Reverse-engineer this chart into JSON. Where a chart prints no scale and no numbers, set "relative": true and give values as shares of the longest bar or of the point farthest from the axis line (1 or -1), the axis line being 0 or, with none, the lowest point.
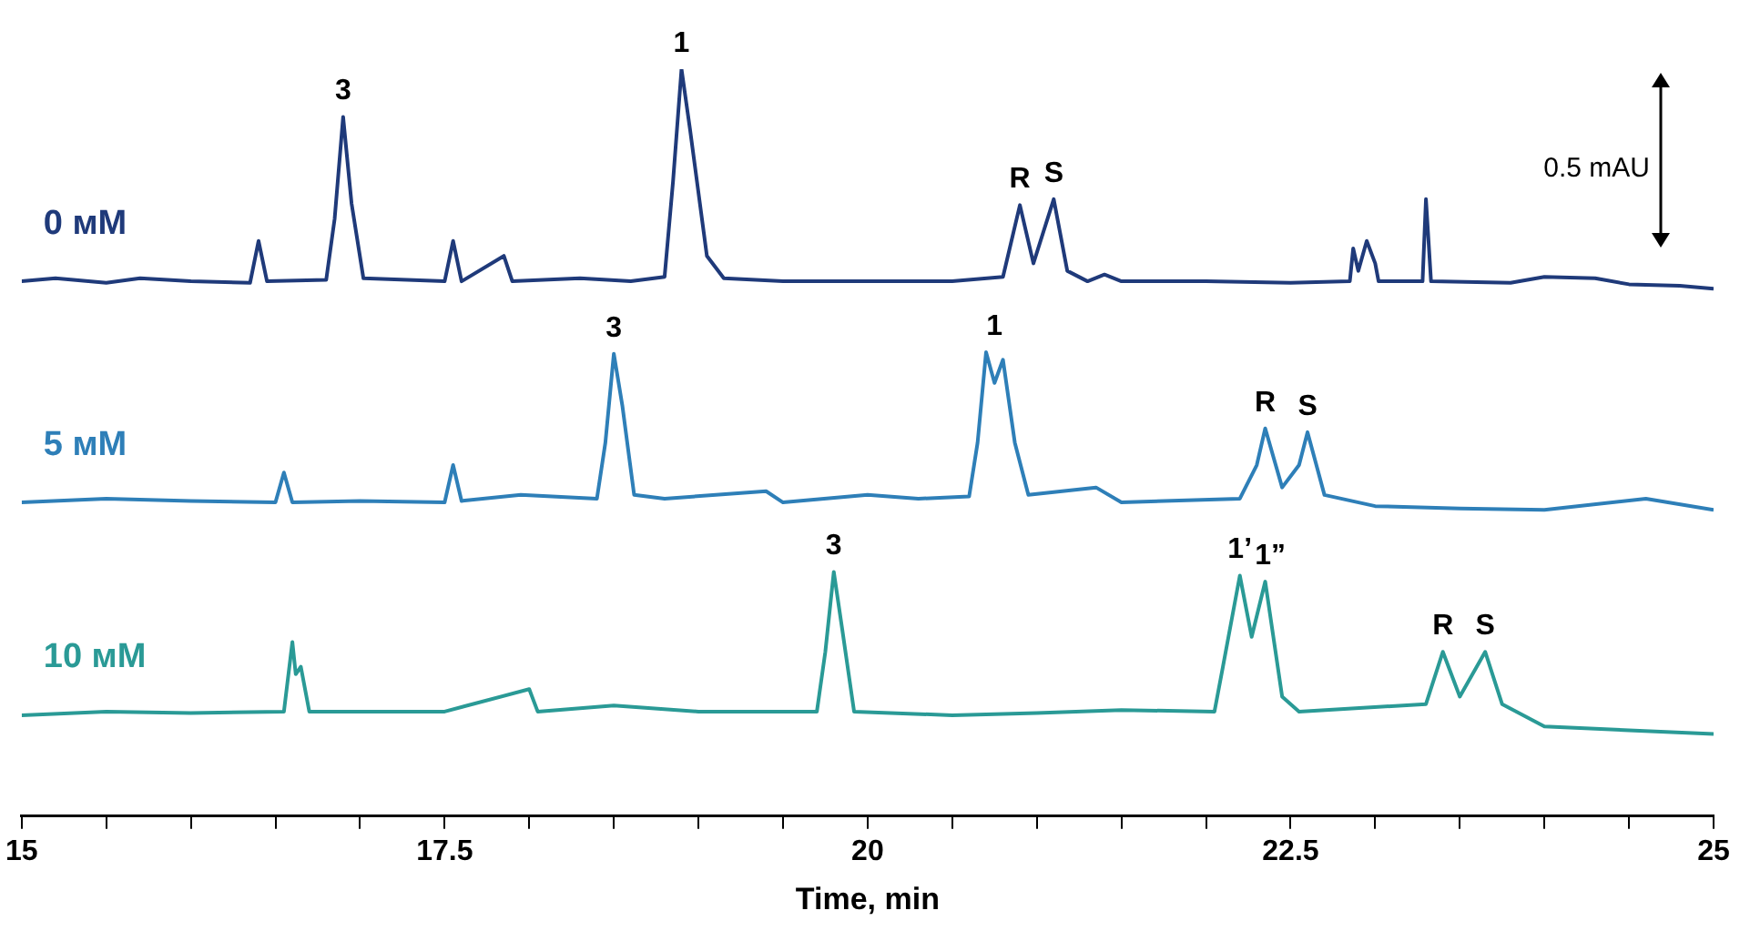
{
  "chart_data": {
    "type": "line",
    "relative": true,
    "xlabel": "Time, min",
    "xlim": [
      15,
      25
    ],
    "xticks": [
      15,
      {
        "value": 15.5,
        "label": null
      },
      {
        "value": 16,
        "label": null
      },
      {
        "value": 16.5,
        "label": null
      },
      {
        "value": 17,
        "label": null
      },
      17.5,
      {
        "value": 18,
        "label": null
      },
      {
        "value": 18.5,
        "label": null
      },
      {
        "value": 19,
        "label": null
      },
      {
        "value": 19.5,
        "label": null
      },
      20,
      {
        "value": 20.5,
        "label": null
      },
      {
        "value": 21,
        "label": null
      },
      {
        "value": 21.5,
        "label": null
      },
      {
        "value": 22,
        "label": null
      },
      22.5,
      {
        "value": 23,
        "label": null
      },
      {
        "value": 23.5,
        "label": null
      },
      {
        "value": 24,
        "label": null
      },
      {
        "value": 24.5,
        "label": null
      },
      25
    ],
    "grid": false,
    "legend": false,
    "marker": "none",
    "line_style": "solid",
    "tick_labels": "x",
    "series": [
      {
        "name": "0 мМ",
        "color": "#1f3a7a",
        "x": [
          15,
          15.2,
          15.5,
          15.7,
          16,
          16.35,
          16.4,
          16.45,
          16.8,
          16.85,
          16.9,
          16.95,
          17.02,
          17.5,
          17.55,
          17.6,
          17.85,
          17.9,
          18.3,
          18.6,
          18.8,
          18.85,
          18.9,
          18.95,
          19.05,
          19.15,
          19.5,
          20,
          20.5,
          20.8,
          20.9,
          20.98,
          21.1,
          21.18,
          21.3,
          21.4,
          21.5,
          22,
          22.5,
          22.85,
          22.87,
          22.9,
          22.95,
          23,
          23.02,
          23.28,
          23.3,
          23.33,
          23.8,
          24,
          24.3,
          24.5,
          24.8,
          25
        ],
        "values": [
          0.716,
          0.72,
          0.714,
          0.72,
          0.716,
          0.714,
          0.77,
          0.716,
          0.718,
          0.8,
          0.936,
          0.82,
          0.72,
          0.716,
          0.77,
          0.716,
          0.75,
          0.716,
          0.72,
          0.716,
          0.722,
          0.85,
          1,
          0.92,
          0.75,
          0.72,
          0.716,
          0.716,
          0.716,
          0.722,
          0.818,
          0.74,
          0.826,
          0.73,
          0.716,
          0.725,
          0.716,
          0.716,
          0.714,
          0.716,
          0.76,
          0.73,
          0.77,
          0.74,
          0.716,
          0.716,
          0.826,
          0.716,
          0.714,
          0.722,
          0.72,
          0.712,
          0.71,
          0.706
        ]
      },
      {
        "name": "5 мМ",
        "color": "#2e7fb8",
        "x": [
          15,
          15.5,
          16,
          16.5,
          16.55,
          16.6,
          17,
          17.5,
          17.55,
          17.6,
          17.95,
          18.4,
          18.45,
          18.5,
          18.55,
          18.62,
          18.8,
          19.4,
          19.5,
          20,
          20.3,
          20.6,
          20.65,
          20.7,
          20.75,
          20.8,
          20.87,
          20.95,
          21.35,
          21.5,
          22.2,
          22.3,
          22.35,
          22.45,
          22.55,
          22.6,
          22.7,
          23,
          23.5,
          24,
          24.6,
          25
        ],
        "values": [
          0.42,
          0.425,
          0.422,
          0.42,
          0.46,
          0.42,
          0.422,
          0.42,
          0.47,
          0.422,
          0.43,
          0.425,
          0.5,
          0.619,
          0.55,
          0.43,
          0.425,
          0.435,
          0.42,
          0.43,
          0.425,
          0.428,
          0.5,
          0.621,
          0.58,
          0.611,
          0.5,
          0.43,
          0.44,
          0.42,
          0.425,
          0.47,
          0.519,
          0.44,
          0.47,
          0.514,
          0.43,
          0.415,
          0.412,
          0.41,
          0.425,
          0.41
        ]
      },
      {
        "name": "10 мМ",
        "color": "#2a9a96",
        "x": [
          15,
          15.5,
          16,
          16.55,
          16.6,
          16.62,
          16.65,
          16.7,
          17.5,
          18,
          18.05,
          18.5,
          19,
          19.7,
          19.75,
          19.8,
          19.85,
          19.92,
          20.5,
          21,
          21.5,
          22.05,
          22.1,
          22.2,
          22.27,
          22.35,
          22.45,
          22.55,
          23.3,
          23.4,
          23.5,
          23.65,
          23.75,
          24,
          24.5,
          25
        ],
        "values": [
          0.135,
          0.14,
          0.138,
          0.14,
          0.233,
          0.19,
          0.2,
          0.14,
          0.14,
          0.17,
          0.14,
          0.148,
          0.14,
          0.14,
          0.22,
          0.327,
          0.25,
          0.14,
          0.135,
          0.138,
          0.142,
          0.14,
          0.2,
          0.322,
          0.24,
          0.314,
          0.16,
          0.14,
          0.15,
          0.22,
          0.16,
          0.22,
          0.15,
          0.12,
          0.115,
          0.11
        ]
      }
    ],
    "annotations": [
      {
        "text": "3",
        "x": 16.9,
        "y": 0.936
      },
      {
        "text": "1",
        "x": 18.9,
        "y": 1
      },
      {
        "text": "R",
        "x": 20.9,
        "y": 0.818
      },
      {
        "text": "S",
        "x": 21.1,
        "y": 0.826
      },
      {
        "text": "3",
        "x": 18.5,
        "y": 0.619
      },
      {
        "text": "1",
        "x": 20.75,
        "y": 0.621
      },
      {
        "text": "R",
        "x": 22.35,
        "y": 0.519
      },
      {
        "text": "S",
        "x": 22.6,
        "y": 0.514
      },
      {
        "text": "3",
        "x": 19.8,
        "y": 0.327
      },
      {
        "text": "1’",
        "x": 22.2,
        "y": 0.322
      },
      {
        "text": "1”",
        "x": 22.38,
        "y": 0.314
      },
      {
        "text": "R",
        "x": 23.4,
        "y": 0.22
      },
      {
        "text": "S",
        "x": 23.65,
        "y": 0.22
      },
      "0.5 mAU"
    ]
  }
}
